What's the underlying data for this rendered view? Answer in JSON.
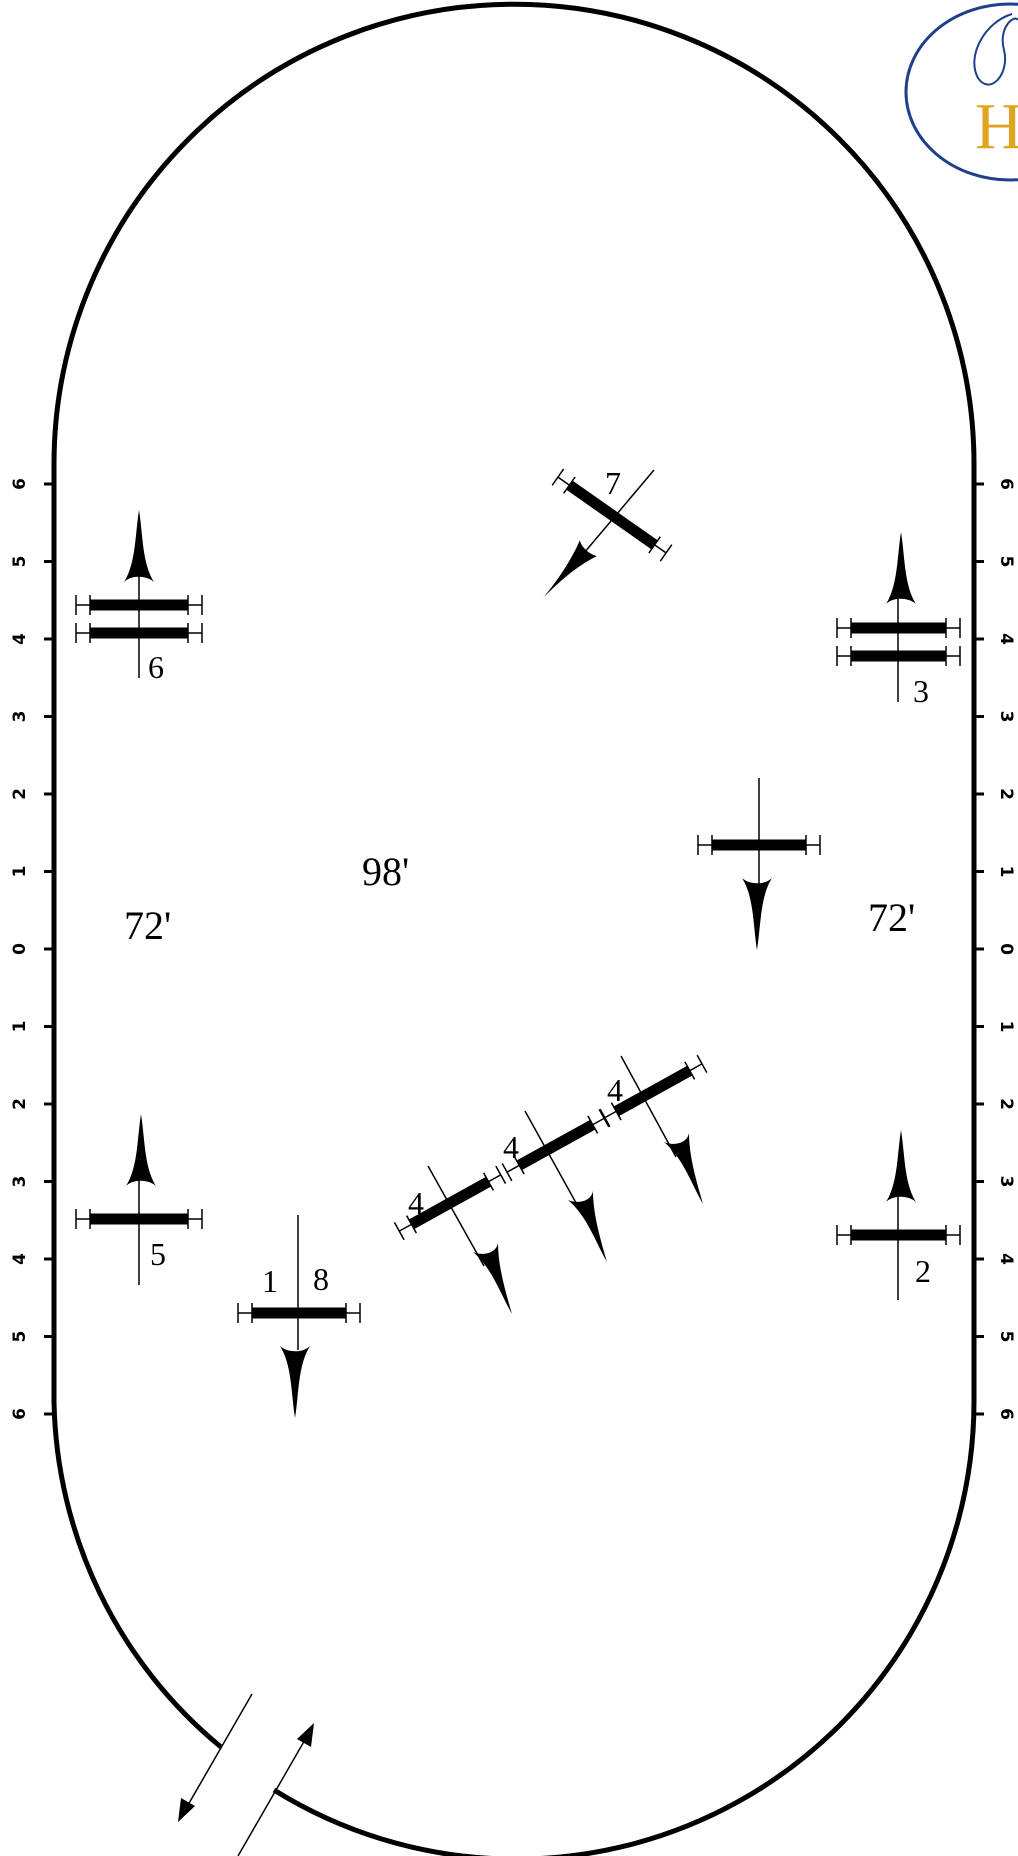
{
  "arena": {
    "left_scale_labels": [
      "6",
      "5",
      "4",
      "3",
      "2",
      "1",
      "0",
      "1",
      "2",
      "3",
      "4",
      "5",
      "6"
    ],
    "right_scale_labels": [
      "6",
      "5",
      "4",
      "3",
      "2",
      "1",
      "0",
      "1",
      "2",
      "3",
      "4",
      "5",
      "6"
    ],
    "dimensions": {
      "left_end": "72'",
      "right_end": "72'",
      "center": "98'"
    }
  },
  "fences": [
    {
      "id": "fence-6",
      "number": "6",
      "type": "oxer"
    },
    {
      "id": "fence-3",
      "number": "3",
      "type": "oxer"
    },
    {
      "id": "fence-7",
      "number": "7",
      "type": "vertical"
    },
    {
      "id": "fence-center-right",
      "number": "",
      "type": "vertical"
    },
    {
      "id": "fence-5",
      "number": "5",
      "type": "vertical"
    },
    {
      "id": "fence-2",
      "number": "2",
      "type": "vertical"
    },
    {
      "id": "fence-1-8",
      "number": "1",
      "number_b": "8",
      "type": "vertical"
    },
    {
      "id": "fence-4a",
      "number": "4",
      "type": "combination"
    },
    {
      "id": "fence-4b",
      "number": "4",
      "type": "combination"
    },
    {
      "id": "fence-4c",
      "number": "4",
      "type": "combination"
    }
  ],
  "logo": {
    "letter": "H"
  },
  "colors": {
    "ink": "#000000",
    "logo_blue": "#1f3f8a",
    "logo_gold": "#e0a51f"
  }
}
